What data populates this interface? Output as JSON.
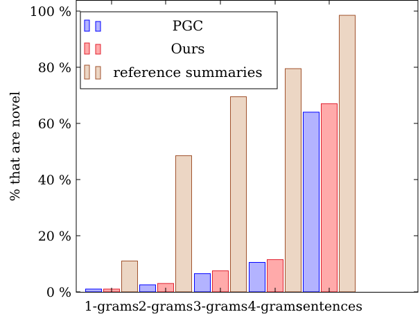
{
  "chart_data": {
    "type": "bar",
    "title": "",
    "xlabel": "",
    "ylabel": "% that are novel",
    "categories": [
      "1-grams",
      "2-grams",
      "3-grams",
      "4-grams",
      "sentences"
    ],
    "ylim": [
      0,
      100
    ],
    "yticks": [
      {
        "value": 0,
        "label": "0 %"
      },
      {
        "value": 20,
        "label": "20 %"
      },
      {
        "value": 40,
        "label": "40 %"
      },
      {
        "value": 60,
        "label": "60 %"
      },
      {
        "value": 80,
        "label": "80 %"
      },
      {
        "value": 100,
        "label": "100 %"
      }
    ],
    "grid": false,
    "legend_position": "top-left",
    "series": [
      {
        "name": "PGC",
        "values": [
          1,
          2.5,
          6.5,
          10.5,
          64
        ],
        "fill": "#b3b3ff",
        "stroke": "#0000ff"
      },
      {
        "name": "Ours",
        "values": [
          1,
          3,
          7.5,
          11.5,
          67
        ],
        "fill": "#ffaaaa",
        "stroke": "#e0202f"
      },
      {
        "name": "reference summaries",
        "values": [
          11,
          48.5,
          69.5,
          79.5,
          98.5
        ],
        "fill": "#ecd6c4",
        "stroke": "#a0522d"
      }
    ]
  }
}
